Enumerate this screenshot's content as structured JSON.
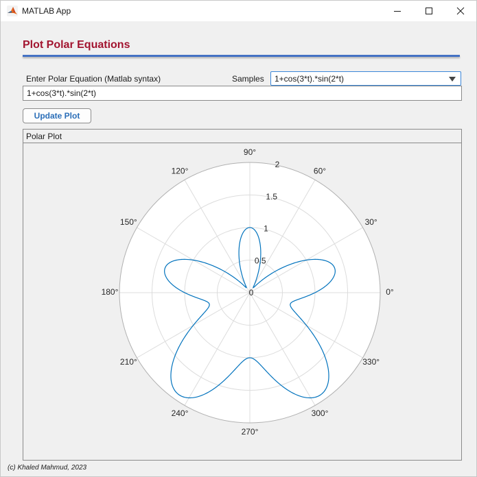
{
  "window": {
    "title": "MATLAB App",
    "icon": "matlab-icon"
  },
  "header": {
    "title": "Plot Polar Equations"
  },
  "equation": {
    "label": "Enter Polar Equation (Matlab syntax)",
    "value": "1+cos(3*t).*sin(2*t)"
  },
  "samples": {
    "label": "Samples",
    "selected": "1+cos(3*t).*sin(2*t)"
  },
  "update_button": {
    "label": "Update Plot"
  },
  "panel": {
    "title": "Polar Plot"
  },
  "footer": {
    "text": "(c) Khaled Mahmud, 2023"
  },
  "colors": {
    "heading": "#a2142f",
    "accent_rule": "#4472c4",
    "curve": "#0072bd",
    "button_text": "#2a6eb8"
  },
  "chart_data": {
    "type": "line",
    "coordinate_system": "polar",
    "equation": "1+cos(3*t).*sin(2*t)",
    "theta_tick_labels": [
      "0°",
      "30°",
      "60°",
      "90°",
      "120°",
      "150°",
      "180°",
      "210°",
      "240°",
      "270°",
      "300°",
      "330°"
    ],
    "theta_ticks_deg": [
      0,
      30,
      60,
      90,
      120,
      150,
      180,
      210,
      240,
      270,
      300,
      330
    ],
    "r_ticks": [
      0,
      0.5,
      1,
      1.5,
      2
    ],
    "r_tick_labels": [
      "0",
      "0.5",
      "1",
      "1.5",
      "2"
    ],
    "rlim": [
      0,
      2
    ],
    "grid": true,
    "series": [
      {
        "equation": "1+cos(3*t).*sin(2*t)",
        "t_range": [
          0,
          6.2832
        ],
        "color": "#0072bd"
      }
    ]
  }
}
